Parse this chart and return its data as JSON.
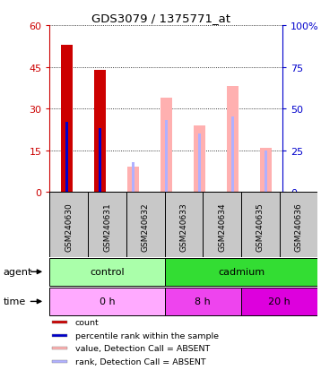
{
  "title": "GDS3079 / 1375771_at",
  "samples": [
    "GSM240630",
    "GSM240631",
    "GSM240632",
    "GSM240633",
    "GSM240634",
    "GSM240635",
    "GSM240636"
  ],
  "count_values": [
    53,
    44,
    0,
    0,
    0,
    0,
    0
  ],
  "rank_values_pct": [
    42,
    38,
    0,
    0,
    0,
    0,
    0
  ],
  "value_absent": [
    0,
    0,
    9,
    34,
    24,
    38,
    16
  ],
  "rank_absent_pct": [
    0,
    0,
    18,
    43,
    35,
    45,
    25
  ],
  "left_ylim": [
    0,
    60
  ],
  "right_ylim": [
    0,
    100
  ],
  "left_yticks": [
    0,
    15,
    30,
    45,
    60
  ],
  "right_yticks": [
    0,
    25,
    50,
    75,
    100
  ],
  "right_yticklabels": [
    "0",
    "25",
    "50",
    "75",
    "100%"
  ],
  "agent_labels": [
    [
      "control",
      0,
      3
    ],
    [
      "cadmium",
      3,
      7
    ]
  ],
  "time_labels": [
    [
      "0 h",
      0,
      3
    ],
    [
      "8 h",
      3,
      5
    ],
    [
      "20 h",
      5,
      7
    ]
  ],
  "agent_colors": [
    "#AAFFAA",
    "#33DD33"
  ],
  "time_colors": [
    "#FFAAFF",
    "#EE44EE",
    "#DD00DD"
  ],
  "bar_width": 0.35,
  "rank_bar_width": 0.08,
  "count_color": "#CC0000",
  "rank_color": "#0000CC",
  "value_absent_color": "#FFB0B0",
  "rank_absent_color": "#B0B0FF",
  "sample_box_color": "#C8C8C8",
  "ylabel_left_color": "#CC0000",
  "ylabel_right_color": "#0000CC"
}
